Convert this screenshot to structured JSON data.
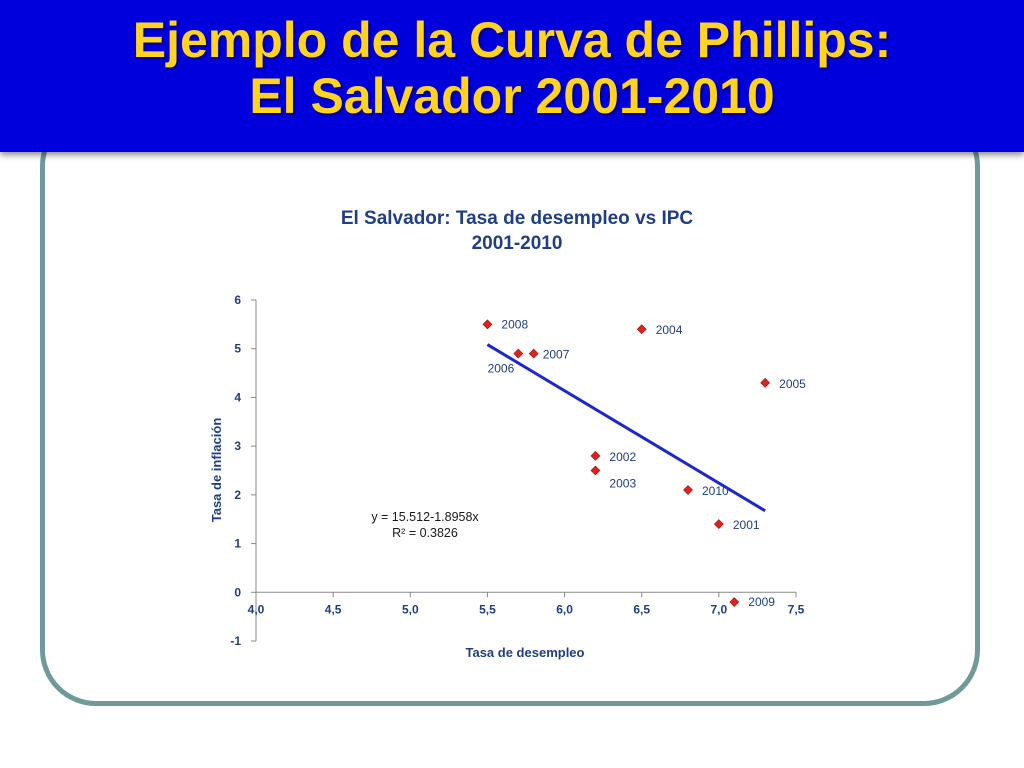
{
  "header": {
    "title_line1": "Ejemplo de la Curva de Phillips:",
    "title_line2": "El Salvador 2001-2010"
  },
  "colors": {
    "banner": "#0000dd",
    "title_text": "#ffd31f",
    "frame_border": "#6f9a99",
    "chart_text": "#1f3e85",
    "marker": "#e0211d",
    "trendline": "#1c27cc"
  },
  "chart_data": {
    "type": "scatter",
    "title": "El Salvador: Tasa de desempleo vs IPC",
    "subtitle": "2001-2010",
    "xlabel": "Tasa de desempleo",
    "ylabel": "Tasa de inflación",
    "xlim": [
      4.0,
      7.5
    ],
    "ylim": [
      -1,
      6
    ],
    "x_ticks": [
      "4,0",
      "4,5",
      "5,0",
      "5,5",
      "6,0",
      "6,5",
      "7,0",
      "7,5"
    ],
    "y_ticks": [
      "-1",
      "0",
      "1",
      "2",
      "3",
      "4",
      "5",
      "6"
    ],
    "grid": false,
    "points": [
      {
        "label": "2001",
        "x": 7.0,
        "y": 1.4
      },
      {
        "label": "2002",
        "x": 6.2,
        "y": 2.8
      },
      {
        "label": "2003",
        "x": 6.2,
        "y": 2.5
      },
      {
        "label": "2004",
        "x": 6.5,
        "y": 5.4
      },
      {
        "label": "2005",
        "x": 7.3,
        "y": 4.3
      },
      {
        "label": "2006",
        "x": 5.7,
        "y": 4.9
      },
      {
        "label": "2007",
        "x": 5.8,
        "y": 4.9
      },
      {
        "label": "2008",
        "x": 5.5,
        "y": 5.5
      },
      {
        "label": "2009",
        "x": 7.1,
        "y": -0.2
      },
      {
        "label": "2010",
        "x": 6.8,
        "y": 2.1
      }
    ],
    "trendline": {
      "intercept": 15.512,
      "slope": -1.8958,
      "x_range": [
        5.5,
        7.3
      ],
      "equation": "y = 15.512-1.8958x",
      "r_squared": "R² = 0.3826"
    }
  }
}
